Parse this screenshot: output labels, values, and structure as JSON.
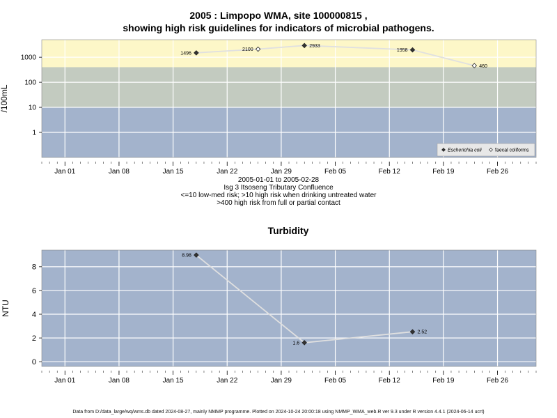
{
  "header": {
    "title_line1": "2005 : Limpopo WMA, site 100000815 ,",
    "title_line2": "showing high risk guidelines for indicators of microbial pathogens."
  },
  "caption": {
    "line1": "2005-01-01 to 2005-02-28",
    "line2": "Isg 3 Itsoseng Tributary Confluence",
    "line3": "<=10 low-med risk; >10 high risk when drinking untreated water",
    "line4": ">400 high risk from full or partial contact"
  },
  "footer": {
    "text": "Data from D:/data_large/wq/wms.db dated 2024-08-27, mainly NMMP programme. Plotted on 2024-10-24 20:00:18 using NMMP_WMA_web.R ver 9.3 under R version 4.4.1 (2024-06-14 ucrt)"
  },
  "colors": {
    "high_risk_band": "#fdf7c8",
    "mid_band": "#c3cbc0",
    "low_band": "#a3b3cc",
    "panel_bg": "#a3b3cc",
    "grid": "#ffffff",
    "series_line": "#e0e0e0"
  },
  "chart_data": [
    {
      "type": "line",
      "title": "",
      "xlabel": "",
      "ylabel": "/100mL",
      "y_scale": "log",
      "xlim": [
        "2004-12-29",
        "2005-03-03"
      ],
      "ylim": [
        0.1,
        5000
      ],
      "x_ticks": [
        {
          "date": "2005-01-01",
          "label": "Jan 01"
        },
        {
          "date": "2005-01-08",
          "label": "Jan 08"
        },
        {
          "date": "2005-01-15",
          "label": "Jan 15"
        },
        {
          "date": "2005-01-22",
          "label": "Jan 22"
        },
        {
          "date": "2005-01-29",
          "label": "Jan 29"
        },
        {
          "date": "2005-02-05",
          "label": "Feb 05"
        },
        {
          "date": "2005-02-12",
          "label": "Feb 12"
        },
        {
          "date": "2005-02-19",
          "label": "Feb 19"
        },
        {
          "date": "2005-02-26",
          "label": "Feb 26"
        }
      ],
      "y_ticks": [
        {
          "value": 1,
          "label": "1"
        },
        {
          "value": 10,
          "label": "10"
        },
        {
          "value": 100,
          "label": "100"
        },
        {
          "value": 1000,
          "label": "1000"
        }
      ],
      "bands": [
        {
          "from": 0.1,
          "to": 10,
          "color_key": "low_band"
        },
        {
          "from": 10,
          "to": 400,
          "color_key": "mid_band"
        },
        {
          "from": 400,
          "to": 5000,
          "color_key": "high_risk_band"
        }
      ],
      "grid": true,
      "legend_position": "bottom-right",
      "series": [
        {
          "name": "Escherichia coli",
          "marker": "filled-diamond",
          "points": [
            {
              "x": "2005-01-18",
              "y": 1496,
              "label": "1496"
            },
            {
              "x": "2005-02-01",
              "y": 2933,
              "label": "2933"
            },
            {
              "x": "2005-02-15",
              "y": 1958,
              "label": "1958"
            }
          ]
        },
        {
          "name": "faecal coliforms",
          "marker": "open-diamond",
          "points": [
            {
              "x": "2005-01-26",
              "y": 2100,
              "label": "2100"
            },
            {
              "x": "2005-02-23",
              "y": 460,
              "label": "460"
            }
          ]
        }
      ]
    },
    {
      "type": "line",
      "title": "Turbidity",
      "xlabel": "",
      "ylabel": "NTU",
      "y_scale": "linear",
      "xlim": [
        "2004-12-29",
        "2005-03-03"
      ],
      "ylim": [
        -0.4,
        9.4
      ],
      "x_ticks": [
        {
          "date": "2005-01-01",
          "label": "Jan 01"
        },
        {
          "date": "2005-01-08",
          "label": "Jan 08"
        },
        {
          "date": "2005-01-15",
          "label": "Jan 15"
        },
        {
          "date": "2005-01-22",
          "label": "Jan 22"
        },
        {
          "date": "2005-01-29",
          "label": "Jan 29"
        },
        {
          "date": "2005-02-05",
          "label": "Feb 05"
        },
        {
          "date": "2005-02-12",
          "label": "Feb 12"
        },
        {
          "date": "2005-02-19",
          "label": "Feb 19"
        },
        {
          "date": "2005-02-26",
          "label": "Feb 26"
        }
      ],
      "y_ticks": [
        {
          "value": 0,
          "label": "0"
        },
        {
          "value": 2,
          "label": "2"
        },
        {
          "value": 4,
          "label": "4"
        },
        {
          "value": 6,
          "label": "6"
        },
        {
          "value": 8,
          "label": "8"
        }
      ],
      "grid": true,
      "series": [
        {
          "marker": "filled-diamond",
          "points": [
            {
              "x": "2005-01-18",
              "y": 8.98,
              "label": "8.98"
            },
            {
              "x": "2005-02-01",
              "y": 1.6,
              "label": "1.6"
            },
            {
              "x": "2005-02-15",
              "y": 2.52,
              "label": "2.52"
            }
          ]
        }
      ]
    }
  ]
}
